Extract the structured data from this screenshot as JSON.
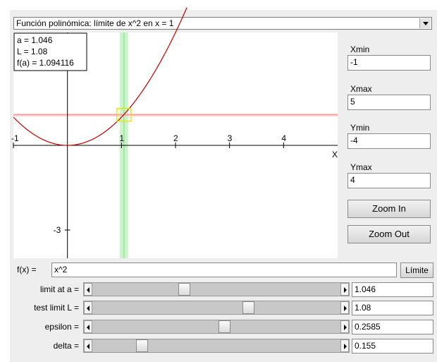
{
  "selector": {
    "value": "Función polinómica:  límite de x^2 en x = 1"
  },
  "info": {
    "a": "a = 1.046",
    "L": "L = 1.08",
    "fa": "f(a) = 1.094116"
  },
  "axes": {
    "x_ticks": [
      "-1",
      "1",
      "2",
      "3",
      "4"
    ],
    "y_ticks": [
      "-3"
    ],
    "x_label": "X",
    "xmin": -1,
    "xmax": 5,
    "ymin": -4,
    "ymax": 4
  },
  "plot": {
    "a": 1.046,
    "L": 1.08,
    "epsilon": 0.2585,
    "delta": 0.155,
    "colors": {
      "curve": "#c00000",
      "band_v": "#b9f0b9",
      "band_h": "#ffc8c8",
      "box": "#e8e800"
    }
  },
  "side": {
    "xmin_label": "Xmin",
    "xmin": "-1",
    "xmax_label": "Xmax",
    "xmax": "5",
    "ymin_label": "Ymin",
    "ymin": "-4",
    "ymax_label": "Ymax",
    "ymax": "4",
    "zoom_in": "Zoom In",
    "zoom_out": "Zoom Out"
  },
  "function": {
    "label": "f(x) =",
    "value": "x^2",
    "button": "Límite"
  },
  "sliders": [
    {
      "label": "limit at a =",
      "value": "1.046",
      "pos": 0.365
    },
    {
      "label": "test limit L =",
      "value": "1.08",
      "pos": 0.635
    },
    {
      "label": "epsilon =",
      "value": "0.2585",
      "pos": 0.535
    },
    {
      "label": "delta =",
      "value": "0.155",
      "pos": 0.185
    }
  ]
}
